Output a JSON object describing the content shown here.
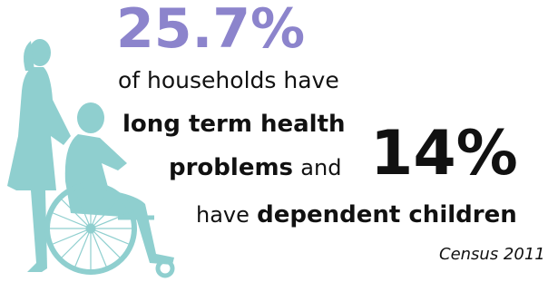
{
  "headline": {
    "stat": "25.7%",
    "line1": "of households have",
    "line2": "long term health",
    "line3_bold": "problems",
    "line3_and": "and"
  },
  "second": {
    "stat": "14%",
    "line_have": "have",
    "line_bold": "dependent children"
  },
  "source": "Census 2011"
}
